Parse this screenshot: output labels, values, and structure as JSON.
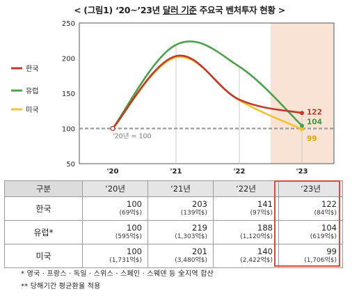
{
  "title_parts": {
    "pre": "< (그림1) ‘20~’23년 ",
    "underlined": "달러 기준",
    "post": " 주요국 벤처투자 현황 >"
  },
  "chart_data": {
    "type": "line",
    "title": "< (그림1) ‘20~’23년 달러 기준 주요국 벤처투자 현황 >",
    "categories": [
      "'20",
      "'21",
      "'22",
      "'23"
    ],
    "ylim": [
      50,
      250
    ],
    "yticks": [
      50,
      100,
      150,
      200,
      250
    ],
    "grid": false,
    "legend_position": "left",
    "series": [
      {
        "name": "한국",
        "values": [
          100,
          203,
          141,
          122
        ],
        "color": "#c0392b",
        "label": "122"
      },
      {
        "name": "유럽",
        "values": [
          100,
          219,
          188,
          104
        ],
        "color": "#4aa24a",
        "label": "104"
      },
      {
        "name": "미국",
        "values": [
          100,
          201,
          140,
          99
        ],
        "color": "#f2c12e",
        "label": "99"
      }
    ],
    "baseline": {
      "value": 100,
      "label": "'20년 = 100"
    },
    "highlight_category": "'23"
  },
  "table": {
    "header": [
      "구분",
      "‘20년",
      "‘21년",
      "‘22년",
      "‘23년"
    ],
    "rows": [
      {
        "label": "한국",
        "cells": [
          {
            "v": "100",
            "s": "(69억$)"
          },
          {
            "v": "203",
            "s": "(139억$)"
          },
          {
            "v": "141",
            "s": "(97억$)"
          },
          {
            "v": "122",
            "s": "(84억$)"
          }
        ]
      },
      {
        "label": "유럽*",
        "cells": [
          {
            "v": "100",
            "s": "(595억$)"
          },
          {
            "v": "219",
            "s": "(1,303억$)"
          },
          {
            "v": "188",
            "s": "(1,120억$)"
          },
          {
            "v": "104",
            "s": "(619억$)"
          }
        ]
      },
      {
        "label": "미국",
        "cells": [
          {
            "v": "100",
            "s": "(1,731억$)"
          },
          {
            "v": "201",
            "s": "(3,480억$)"
          },
          {
            "v": "140",
            "s": "(2,422억$)"
          },
          {
            "v": "99",
            "s": "(1,706억$)"
          }
        ]
      }
    ]
  },
  "notes": [
    "*  영국 · 프랑스 · 독일 · 스위스 · 스페인 · 스웨덴 등 全지역 합산",
    "**  당해기간 평균환율 적용"
  ]
}
